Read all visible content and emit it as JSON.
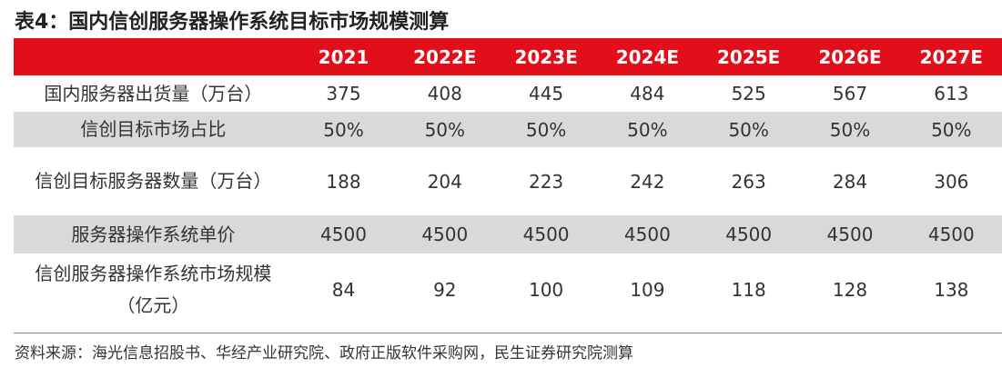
{
  "title": "表4：国内信创服务器操作系统目标市场规模测算",
  "table": {
    "header": [
      "",
      "2021",
      "2022E",
      "2023E",
      "2024E",
      "2025E",
      "2026E",
      "2027E"
    ],
    "rows": [
      {
        "label": "国内服务器出货量（万台）",
        "values": [
          "375",
          "408",
          "445",
          "484",
          "525",
          "567",
          "613"
        ]
      },
      {
        "label": "信创目标市场占比",
        "values": [
          "50%",
          "50%",
          "50%",
          "50%",
          "50%",
          "50%",
          "50%"
        ]
      },
      {
        "label": "信创目标服务器数量（万台）",
        "values": [
          "188",
          "204",
          "223",
          "242",
          "263",
          "284",
          "306"
        ]
      },
      {
        "label": "服务器操作系统单价",
        "values": [
          "4500",
          "4500",
          "4500",
          "4500",
          "4500",
          "4500",
          "4500"
        ]
      },
      {
        "label": "信创服务器操作系统市场规模（亿元）",
        "values": [
          "84",
          "92",
          "100",
          "109",
          "118",
          "128",
          "138"
        ]
      }
    ]
  },
  "source": "资料来源：海光信息招股书、华经产业研究院、政府正版软件采购网，民生证券研究院测算",
  "colors": {
    "header_bg": "#e20f1b",
    "shaded_row": "#d9d9d9",
    "header_text": "#ffffff"
  }
}
